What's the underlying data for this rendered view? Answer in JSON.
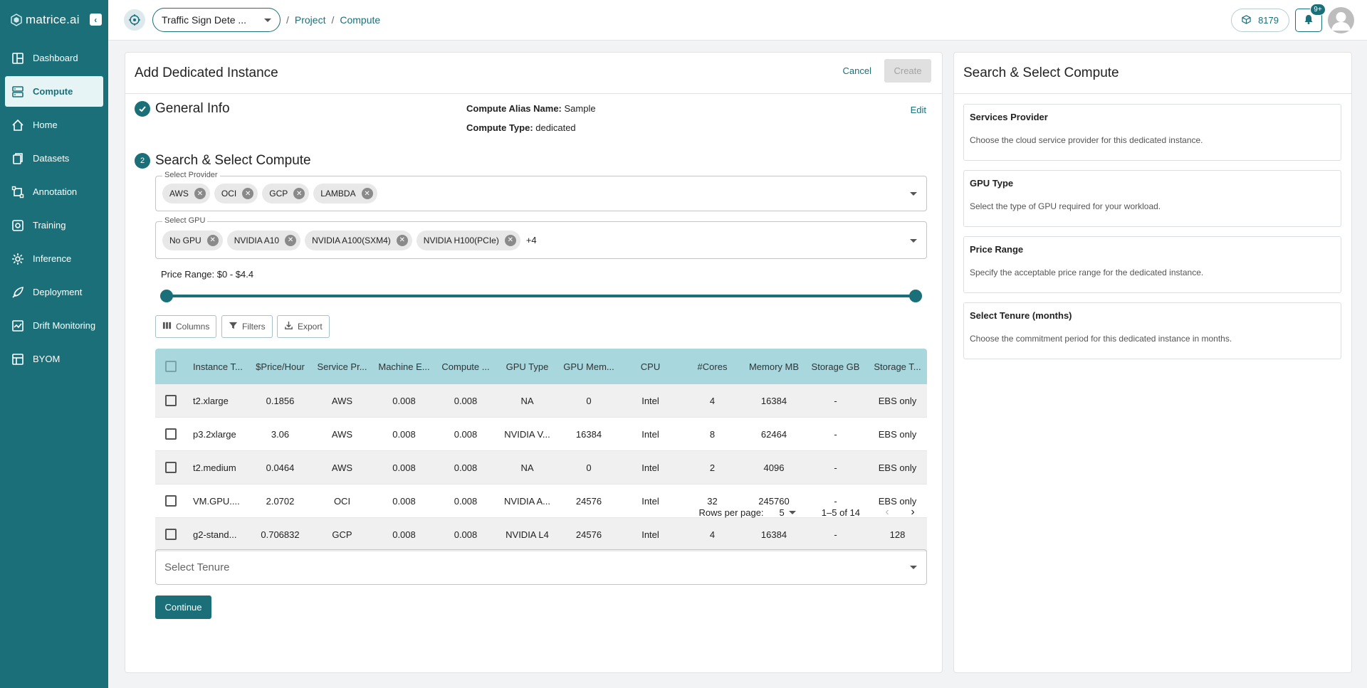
{
  "app": {
    "brand": "matrice.ai"
  },
  "sidebar": {
    "items": [
      {
        "label": "Dashboard",
        "icon": "dashboard-icon",
        "active": false
      },
      {
        "label": "Compute",
        "icon": "compute-icon",
        "active": true
      },
      {
        "label": "Home",
        "icon": "home-icon",
        "active": false
      },
      {
        "label": "Datasets",
        "icon": "datasets-icon",
        "active": false
      },
      {
        "label": "Annotation",
        "icon": "annotation-icon",
        "active": false
      },
      {
        "label": "Training",
        "icon": "training-icon",
        "active": false
      },
      {
        "label": "Inference",
        "icon": "inference-icon",
        "active": false
      },
      {
        "label": "Deployment",
        "icon": "deployment-icon",
        "active": false
      },
      {
        "label": "Drift Monitoring",
        "icon": "drift-monitoring-icon",
        "active": false
      },
      {
        "label": "BYOM",
        "icon": "byom-icon",
        "active": false
      }
    ]
  },
  "topbar": {
    "project_name": "Traffic Sign Dete ...",
    "breadcrumb": [
      "Project",
      "Compute"
    ],
    "separator": "/",
    "credits": "8179",
    "notifications_badge": "9+"
  },
  "main": {
    "title": "Add Dedicated Instance",
    "cancel_label": "Cancel",
    "create_label": "Create",
    "general_info": {
      "title": "General Info",
      "alias_label": "Compute Alias Name:",
      "alias_value": "Sample",
      "type_label": "Compute Type:",
      "type_value": "dedicated",
      "edit_label": "Edit"
    },
    "search": {
      "step_number": "2",
      "title": "Search & Select Compute",
      "provider": {
        "label": "Select Provider",
        "chips": [
          "AWS",
          "OCI",
          "GCP",
          "LAMBDA"
        ]
      },
      "gpu": {
        "label": "Select GPU",
        "chips": [
          "No GPU",
          "NVIDIA A10",
          "NVIDIA A100(SXM4)",
          "NVIDIA H100(PCIe)"
        ],
        "more": "+4"
      },
      "price_range": {
        "label": "Price Range: $0 - $4.4",
        "min": 0,
        "max": 4.4,
        "selected_min": 0,
        "selected_max": 4.4
      },
      "toolbar": {
        "columns": "Columns",
        "filters": "Filters",
        "export": "Export"
      },
      "table": {
        "columns": [
          "Instance T...",
          "$Price/Hour",
          "Service Pr...",
          "Machine E...",
          "Compute ...",
          "GPU Type",
          "GPU Mem...",
          "CPU",
          "#Cores",
          "Memory MB",
          "Storage GB",
          "Storage T..."
        ],
        "rows": [
          [
            "t2.xlarge",
            "0.1856",
            "AWS",
            "0.008",
            "0.008",
            "NA",
            "0",
            "Intel",
            "4",
            "16384",
            "-",
            "EBS only"
          ],
          [
            "p3.2xlarge",
            "3.06",
            "AWS",
            "0.008",
            "0.008",
            "NVIDIA V...",
            "16384",
            "Intel",
            "8",
            "62464",
            "-",
            "EBS only"
          ],
          [
            "t2.medium",
            "0.0464",
            "AWS",
            "0.008",
            "0.008",
            "NA",
            "0",
            "Intel",
            "2",
            "4096",
            "-",
            "EBS only"
          ],
          [
            "VM.GPU....",
            "2.0702",
            "OCI",
            "0.008",
            "0.008",
            "NVIDIA A...",
            "24576",
            "Intel",
            "32",
            "245760",
            "-",
            "EBS only"
          ],
          [
            "g2-stand...",
            "0.706832",
            "GCP",
            "0.008",
            "0.008",
            "NVIDIA L4",
            "24576",
            "Intel",
            "4",
            "16384",
            "-",
            "128"
          ]
        ]
      },
      "pagination": {
        "rows_per_page_label": "Rows per page:",
        "rows_per_page": "5",
        "range": "1–5 of 14"
      },
      "tenure_placeholder": "Select Tenure",
      "continue_label": "Continue"
    }
  },
  "right": {
    "title": "Search & Select Compute",
    "cards": [
      {
        "title": "Services Provider",
        "desc": "Choose the cloud service provider for this dedicated instance."
      },
      {
        "title": "GPU Type",
        "desc": "Select the type of GPU required for your workload."
      },
      {
        "title": "Price Range",
        "desc": "Specify the acceptable price range for the dedicated instance."
      },
      {
        "title": "Select Tenure (months)",
        "desc": "Choose the commitment period for this dedicated instance in months."
      }
    ]
  },
  "colors": {
    "brand": "#1b6f78",
    "header_row": "#a8d7de",
    "active_nav_bg": "#e6f4f6"
  }
}
